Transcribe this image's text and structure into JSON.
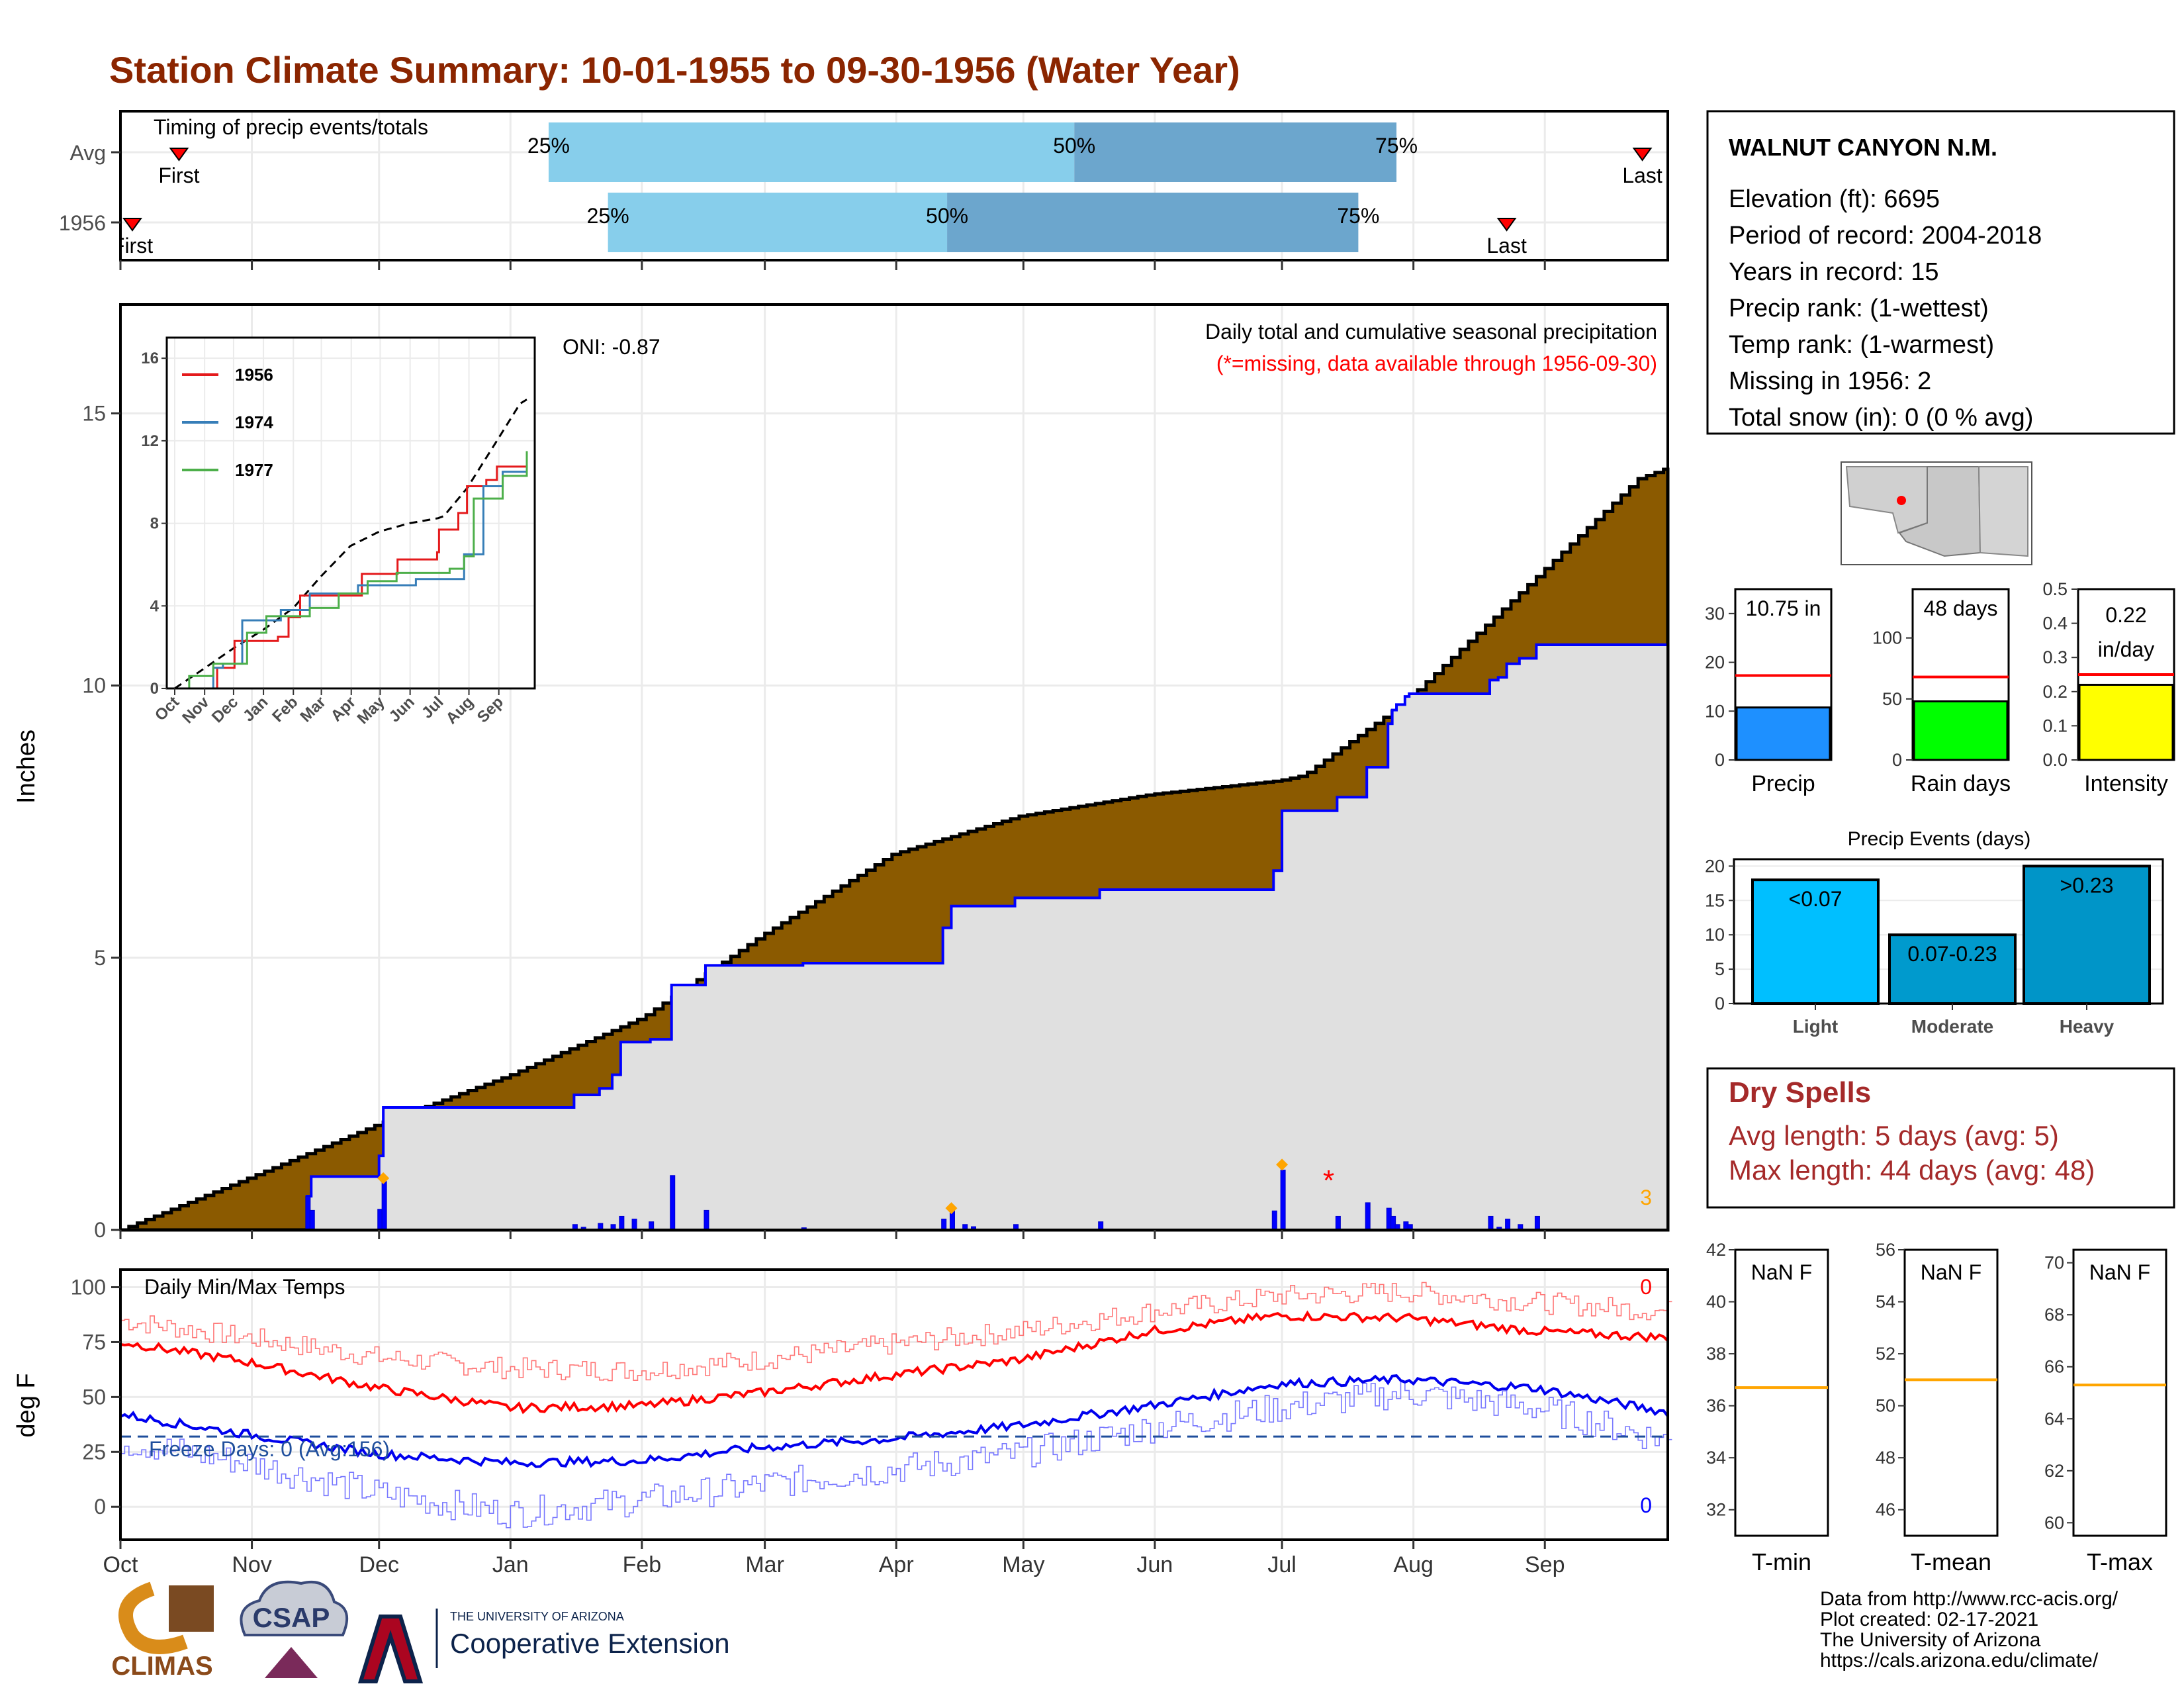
{
  "title": "Station Climate Summary: 10-01-1955 to 09-30-1956 (Water Year)",
  "colors": {
    "title": "#8b2500",
    "brown": "#8b5a00",
    "light_blue": "#87ceeb",
    "mid_blue": "#6ca6cd",
    "precip_blue": "#1e90ff",
    "rain_green": "#00ff00",
    "intensity_yellow": "#ffff00",
    "events_light": "#00bfff",
    "events_moderate": "#009acd",
    "events_heavy": "#0095c8",
    "dry_red": "#a52a2a"
  },
  "timing": {
    "label": "Timing of precip events/totals",
    "rows": [
      {
        "name": "Avg",
        "first_label": "First",
        "last_label": "Last",
        "first_day": 11,
        "last_day": 359,
        "q25_day": 101,
        "q50_day": 225,
        "q75_day": 301,
        "q25_label": "25%",
        "q50_label": "50%",
        "q75_label": "75%"
      },
      {
        "name": "1956",
        "first_label": "First",
        "last_label": "Last",
        "first_day": 0,
        "last_day": 327,
        "q25_day": 115,
        "q50_day": 195,
        "q75_day": 292,
        "q25_label": "25%",
        "q50_label": "50%",
        "q75_label": "75%"
      }
    ]
  },
  "main": {
    "ylabel": "Inches",
    "yticks": [
      "0",
      "5",
      "10",
      "15"
    ],
    "subtitle1": "Daily total and cumulative seasonal precipitation",
    "subtitle2": "(*=missing, data available through 1956-09-30)",
    "oni_label": "ONI: -0.87",
    "count_label": "3",
    "months": [
      "Oct",
      "Nov",
      "Dec",
      "Jan",
      "Feb",
      "Mar",
      "Apr",
      "May",
      "Jun",
      "Jul",
      "Aug",
      "Sep"
    ]
  },
  "chart_data": {
    "type": "area",
    "x_unit": "day of water year (0 = Oct 1)",
    "avg_cumulative": [
      [
        0,
        0
      ],
      [
        30,
        0.95
      ],
      [
        61,
        1.95
      ],
      [
        92,
        2.85
      ],
      [
        123,
        3.9
      ],
      [
        151,
        5.4
      ],
      [
        182,
        6.9
      ],
      [
        212,
        7.6
      ],
      [
        243,
        8.0
      ],
      [
        273,
        8.25
      ],
      [
        279,
        8.35
      ],
      [
        303,
        9.7
      ],
      [
        334,
        12.0
      ],
      [
        358,
        13.8
      ],
      [
        365,
        14.0
      ]
    ],
    "year_cumulative": [
      [
        0,
        0
      ],
      [
        43,
        0
      ],
      [
        44,
        0.62
      ],
      [
        45,
        0.98
      ],
      [
        60,
        0.98
      ],
      [
        61,
        1.36
      ],
      [
        62,
        2.25
      ],
      [
        106,
        2.25
      ],
      [
        107,
        2.48
      ],
      [
        113,
        2.6
      ],
      [
        116,
        2.85
      ],
      [
        118,
        3.45
      ],
      [
        125,
        3.5
      ],
      [
        130,
        4.5
      ],
      [
        137,
        4.5
      ],
      [
        138,
        4.86
      ],
      [
        160,
        4.86
      ],
      [
        161,
        4.9
      ],
      [
        193,
        4.9
      ],
      [
        194,
        5.55
      ],
      [
        196,
        5.95
      ],
      [
        211,
        6.1
      ],
      [
        230,
        6.1
      ],
      [
        231,
        6.25
      ],
      [
        271,
        6.25
      ],
      [
        272,
        6.6
      ],
      [
        274,
        7.7
      ],
      [
        286,
        7.7
      ],
      [
        287,
        7.95
      ],
      [
        293,
        7.95
      ],
      [
        294,
        8.5
      ],
      [
        298,
        8.5
      ],
      [
        299,
        9.3
      ],
      [
        300,
        9.55
      ],
      [
        301,
        9.65
      ],
      [
        303,
        9.8
      ],
      [
        304,
        9.85
      ],
      [
        322,
        9.85
      ],
      [
        323,
        10.1
      ],
      [
        325,
        10.15
      ],
      [
        327,
        10.4
      ],
      [
        330,
        10.5
      ],
      [
        334,
        10.75
      ],
      [
        365,
        10.75
      ]
    ],
    "daily_bars": [
      [
        44,
        0.62
      ],
      [
        45,
        0.36
      ],
      [
        61,
        0.38
      ],
      [
        62,
        0.89
      ],
      [
        107,
        0.1
      ],
      [
        109,
        0.05
      ],
      [
        113,
        0.12
      ],
      [
        116,
        0.1
      ],
      [
        118,
        0.25
      ],
      [
        121,
        0.2
      ],
      [
        125,
        0.15
      ],
      [
        130,
        1.0
      ],
      [
        138,
        0.36
      ],
      [
        161,
        0.04
      ],
      [
        194,
        0.2
      ],
      [
        196,
        0.35
      ],
      [
        199,
        0.1
      ],
      [
        201,
        0.06
      ],
      [
        211,
        0.1
      ],
      [
        231,
        0.15
      ],
      [
        272,
        0.35
      ],
      [
        274,
        1.1
      ],
      [
        287,
        0.25
      ],
      [
        294,
        0.5
      ],
      [
        299,
        0.4
      ],
      [
        300,
        0.25
      ],
      [
        301,
        0.1
      ],
      [
        303,
        0.15
      ],
      [
        304,
        0.1
      ],
      [
        323,
        0.25
      ],
      [
        325,
        0.05
      ],
      [
        327,
        0.2
      ],
      [
        330,
        0.1
      ],
      [
        334,
        0.25
      ]
    ],
    "max_markers": [
      [
        62,
        0.95
      ],
      [
        196,
        0.4
      ],
      [
        274,
        1.2
      ]
    ],
    "missing_marker": [
      285,
      1.0
    ],
    "ylim": [
      0,
      17.0
    ],
    "inset": {
      "months": [
        "Oct",
        "Nov",
        "Dec",
        "Jan",
        "Feb",
        "Mar",
        "Apr",
        "May",
        "Jun",
        "Jul",
        "Aug",
        "Sep"
      ],
      "yticks": [
        "0",
        "4",
        "8",
        "12",
        "16"
      ],
      "series": [
        {
          "name": "1956",
          "color": "#e41a1c",
          "values": [
            [
              0,
              0
            ],
            [
              44,
              1.0
            ],
            [
              62,
              2.3
            ],
            [
              107,
              2.5
            ],
            [
              118,
              3.45
            ],
            [
              130,
              4.5
            ],
            [
              194,
              5.55
            ],
            [
              231,
              6.25
            ],
            [
              272,
              6.6
            ],
            [
              274,
              7.7
            ],
            [
              294,
              8.5
            ],
            [
              303,
              9.8
            ],
            [
              323,
              10.1
            ],
            [
              334,
              10.75
            ],
            [
              365,
              10.75
            ]
          ]
        },
        {
          "name": "1974",
          "color": "#377eb8",
          "values": [
            [
              0,
              0
            ],
            [
              40,
              1.0
            ],
            [
              50,
              1.2
            ],
            [
              70,
              3.3
            ],
            [
              110,
              3.8
            ],
            [
              140,
              4.6
            ],
            [
              190,
              5.0
            ],
            [
              250,
              5.3
            ],
            [
              300,
              6.5
            ],
            [
              320,
              9.8
            ],
            [
              340,
              10.5
            ],
            [
              365,
              11.3
            ]
          ]
        },
        {
          "name": "1977",
          "color": "#4daf4a",
          "values": [
            [
              0,
              0
            ],
            [
              15,
              0.6
            ],
            [
              40,
              1.2
            ],
            [
              75,
              2.7
            ],
            [
              95,
              3.5
            ],
            [
              140,
              3.9
            ],
            [
              170,
              4.6
            ],
            [
              200,
              5.2
            ],
            [
              230,
              5.6
            ],
            [
              285,
              5.8
            ],
            [
              300,
              6.4
            ],
            [
              310,
              9.2
            ],
            [
              340,
              10.3
            ],
            [
              365,
              11.5
            ]
          ]
        }
      ],
      "avg_values": [
        [
          0,
          0
        ],
        [
          30,
          0.95
        ],
        [
          61,
          1.95
        ],
        [
          92,
          2.85
        ],
        [
          123,
          3.9
        ],
        [
          151,
          5.4
        ],
        [
          182,
          6.9
        ],
        [
          212,
          7.6
        ],
        [
          243,
          8.0
        ],
        [
          273,
          8.25
        ],
        [
          279,
          8.35
        ],
        [
          303,
          9.7
        ],
        [
          334,
          12.0
        ],
        [
          358,
          13.8
        ],
        [
          365,
          14.0
        ]
      ]
    }
  },
  "temps": {
    "label": "Daily Min/Max Temps",
    "ylabel": "deg F",
    "yticks": [
      "0",
      "25",
      "50",
      "75",
      "100"
    ],
    "freeze_label": "Freeze Days: 0 (Avg:156)",
    "max_count": "0",
    "min_count": "0",
    "freeze_line": 32,
    "avg_max": [
      [
        0,
        75
      ],
      [
        30,
        66
      ],
      [
        61,
        54
      ],
      [
        92,
        45
      ],
      [
        123,
        46
      ],
      [
        151,
        52
      ],
      [
        182,
        60
      ],
      [
        212,
        67
      ],
      [
        243,
        80
      ],
      [
        273,
        87
      ],
      [
        303,
        86
      ],
      [
        334,
        80
      ],
      [
        365,
        77
      ]
    ],
    "avg_min": [
      [
        0,
        42
      ],
      [
        30,
        33
      ],
      [
        61,
        24
      ],
      [
        92,
        20
      ],
      [
        123,
        21
      ],
      [
        151,
        27
      ],
      [
        182,
        31
      ],
      [
        212,
        37
      ],
      [
        243,
        46
      ],
      [
        273,
        56
      ],
      [
        303,
        58
      ],
      [
        334,
        54
      ],
      [
        365,
        43
      ]
    ],
    "rec_max": [
      [
        0,
        85
      ],
      [
        30,
        77
      ],
      [
        61,
        68
      ],
      [
        92,
        63
      ],
      [
        123,
        62
      ],
      [
        151,
        67
      ],
      [
        182,
        74
      ],
      [
        212,
        80
      ],
      [
        243,
        89
      ],
      [
        273,
        96
      ],
      [
        303,
        98
      ],
      [
        334,
        93
      ],
      [
        365,
        89
      ]
    ],
    "rec_min": [
      [
        0,
        30
      ],
      [
        30,
        20
      ],
      [
        61,
        6
      ],
      [
        92,
        -3
      ],
      [
        123,
        3
      ],
      [
        151,
        10
      ],
      [
        182,
        17
      ],
      [
        212,
        24
      ],
      [
        243,
        36
      ],
      [
        273,
        45
      ],
      [
        303,
        52
      ],
      [
        334,
        45
      ],
      [
        365,
        30
      ]
    ]
  },
  "station": {
    "name": "WALNUT CANYON N.M.",
    "lines": [
      "Elevation (ft): 6695",
      "Period of record: 2004-2018",
      "Years in record: 15",
      "Precip rank:  (1-wettest)",
      "Temp rank:  (1-warmest)",
      "Missing in 1956: 2",
      "Total snow (in): 0 (0 % avg)"
    ]
  },
  "mini_bars": [
    {
      "label": "Precip",
      "value_label": "10.75 in",
      "value": 10.75,
      "avg": 17.3,
      "ymax": 35,
      "yticks": [
        "0",
        "10",
        "20",
        "30"
      ],
      "tick_values": [
        0,
        10,
        20,
        30
      ],
      "color": "#1e90ff"
    },
    {
      "label": "Rain days",
      "value_label": "48 days",
      "value": 48,
      "avg": 68,
      "ymax": 140,
      "yticks": [
        "0",
        "50",
        "100"
      ],
      "tick_values": [
        0,
        50,
        100
      ],
      "color": "#00ff00"
    },
    {
      "label": "Intensity",
      "value_label": "0.22 in/day",
      "value": 0.22,
      "avg": 0.25,
      "ymax": 0.5,
      "yticks": [
        "0.0",
        "0.1",
        "0.2",
        "0.3",
        "0.4",
        "0.5"
      ],
      "tick_values": [
        0,
        0.1,
        0.2,
        0.3,
        0.4,
        0.5
      ],
      "color": "#ffff00"
    }
  ],
  "events": {
    "title": "Precip Events (days)",
    "yticks": [
      "0",
      "5",
      "10",
      "15",
      "20"
    ],
    "bars": [
      {
        "category": "Light",
        "label": "<0.07",
        "value": 18
      },
      {
        "category": "Moderate",
        "label": "0.07-0.23",
        "value": 10
      },
      {
        "category": "Heavy",
        "label": ">0.23",
        "value": 20
      }
    ]
  },
  "dry": {
    "title": "Dry Spells",
    "avg_line": "Avg length: 5 days (avg: 5)",
    "max_line": "Max length: 44 days (avg: 48)"
  },
  "temp_boxes": [
    {
      "label": "T-min",
      "value": "NaN F",
      "yticks": [
        "32",
        "34",
        "36",
        "38",
        "40",
        "42"
      ],
      "ymin": 31,
      "ymax": 42,
      "avg": 36.7
    },
    {
      "label": "T-mean",
      "value": "NaN F",
      "yticks": [
        "46",
        "48",
        "50",
        "52",
        "54",
        "56"
      ],
      "ymin": 45,
      "ymax": 56,
      "avg": 51
    },
    {
      "label": "T-max",
      "value": "NaN F",
      "yticks": [
        "60",
        "62",
        "64",
        "66",
        "68",
        "70"
      ],
      "ymin": 59.5,
      "ymax": 70.5,
      "avg": 65.3
    }
  ],
  "footer": {
    "lines": [
      "Data from http://www.rcc-acis.org/",
      "Plot created: 02-17-2021",
      "The University of Arizona",
      "https://cals.arizona.edu/climate/"
    ],
    "logo_climas": "CLIMAS",
    "logo_csap": "CSAP",
    "logo_ua_small": "THE UNIVERSITY OF ARIZONA",
    "logo_ua_big": "Cooperative Extension"
  }
}
